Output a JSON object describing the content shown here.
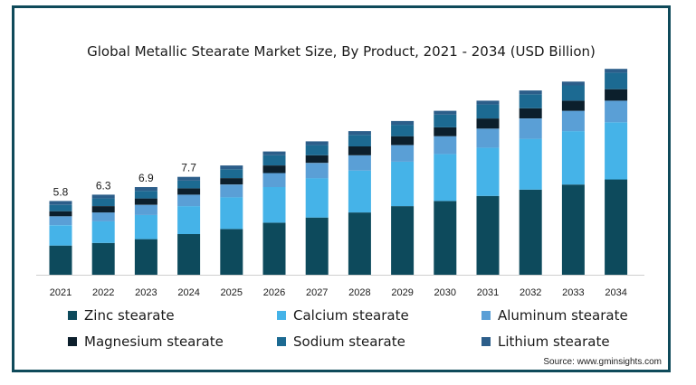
{
  "chart_data": {
    "type": "bar",
    "stacked": true,
    "title": "Global Metallic Stearate Market Size, By Product, 2021 - 2034 (USD Billion)",
    "xlabel": "",
    "ylabel": "",
    "categories": [
      "2021",
      "2022",
      "2023",
      "2024",
      "2025",
      "2026",
      "2027",
      "2028",
      "2029",
      "2030",
      "2031",
      "2032",
      "2033",
      "2034"
    ],
    "totals_labels": [
      "5.8",
      "6.3",
      "6.9",
      "7.7"
    ],
    "ylim": [
      0,
      16.5
    ],
    "grid": false,
    "legend": "bottom",
    "series": [
      {
        "name": "Zinc stearate",
        "color": "#0d4a5c",
        "values": [
          2.3,
          2.5,
          2.8,
          3.2,
          3.6,
          4.1,
          4.5,
          4.9,
          5.4,
          5.8,
          6.2,
          6.7,
          7.1,
          7.5
        ]
      },
      {
        "name": "Calcium stearate",
        "color": "#45b3e8",
        "values": [
          1.6,
          1.7,
          1.9,
          2.2,
          2.5,
          2.8,
          3.1,
          3.3,
          3.5,
          3.7,
          3.8,
          4.0,
          4.2,
          4.5
        ]
      },
      {
        "name": "Aluminum stearate",
        "color": "#5a9fd6",
        "values": [
          0.7,
          0.7,
          0.8,
          0.9,
          1.0,
          1.1,
          1.2,
          1.2,
          1.3,
          1.4,
          1.5,
          1.6,
          1.6,
          1.7
        ]
      },
      {
        "name": "Magnesium stearate",
        "color": "#0c1f2c",
        "values": [
          0.4,
          0.5,
          0.5,
          0.5,
          0.5,
          0.6,
          0.6,
          0.7,
          0.7,
          0.7,
          0.8,
          0.8,
          0.8,
          0.9
        ]
      },
      {
        "name": "Sodium stearate",
        "color": "#1c6a92",
        "values": [
          0.5,
          0.6,
          0.6,
          0.6,
          0.7,
          0.8,
          0.8,
          0.9,
          0.9,
          1.0,
          1.1,
          1.1,
          1.2,
          1.3
        ]
      },
      {
        "name": "Lithium stearate",
        "color": "#2c5e8a",
        "values": [
          0.3,
          0.3,
          0.3,
          0.3,
          0.3,
          0.3,
          0.3,
          0.3,
          0.3,
          0.3,
          0.3,
          0.3,
          0.3,
          0.3
        ]
      }
    ]
  },
  "source": "Source: www.gminsights.com"
}
